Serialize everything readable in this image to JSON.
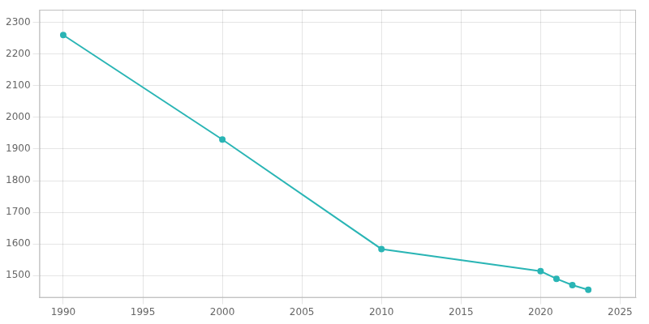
{
  "chart_data": {
    "type": "line",
    "x": [
      1990,
      2000,
      2010,
      2020,
      2021,
      2022,
      2023
    ],
    "values": [
      2260,
      1930,
      1584,
      1514,
      1490,
      1470,
      1455
    ],
    "color": "#2ab5b5",
    "marker": "circle",
    "xlim": [
      1988.5,
      2026
    ],
    "ylim": [
      1430,
      2340
    ],
    "xticks": [
      1990,
      1995,
      2000,
      2005,
      2010,
      2015,
      2020,
      2025
    ],
    "yticks": [
      1500,
      1600,
      1700,
      1800,
      1900,
      2000,
      2100,
      2200,
      2300
    ],
    "grid": true
  }
}
